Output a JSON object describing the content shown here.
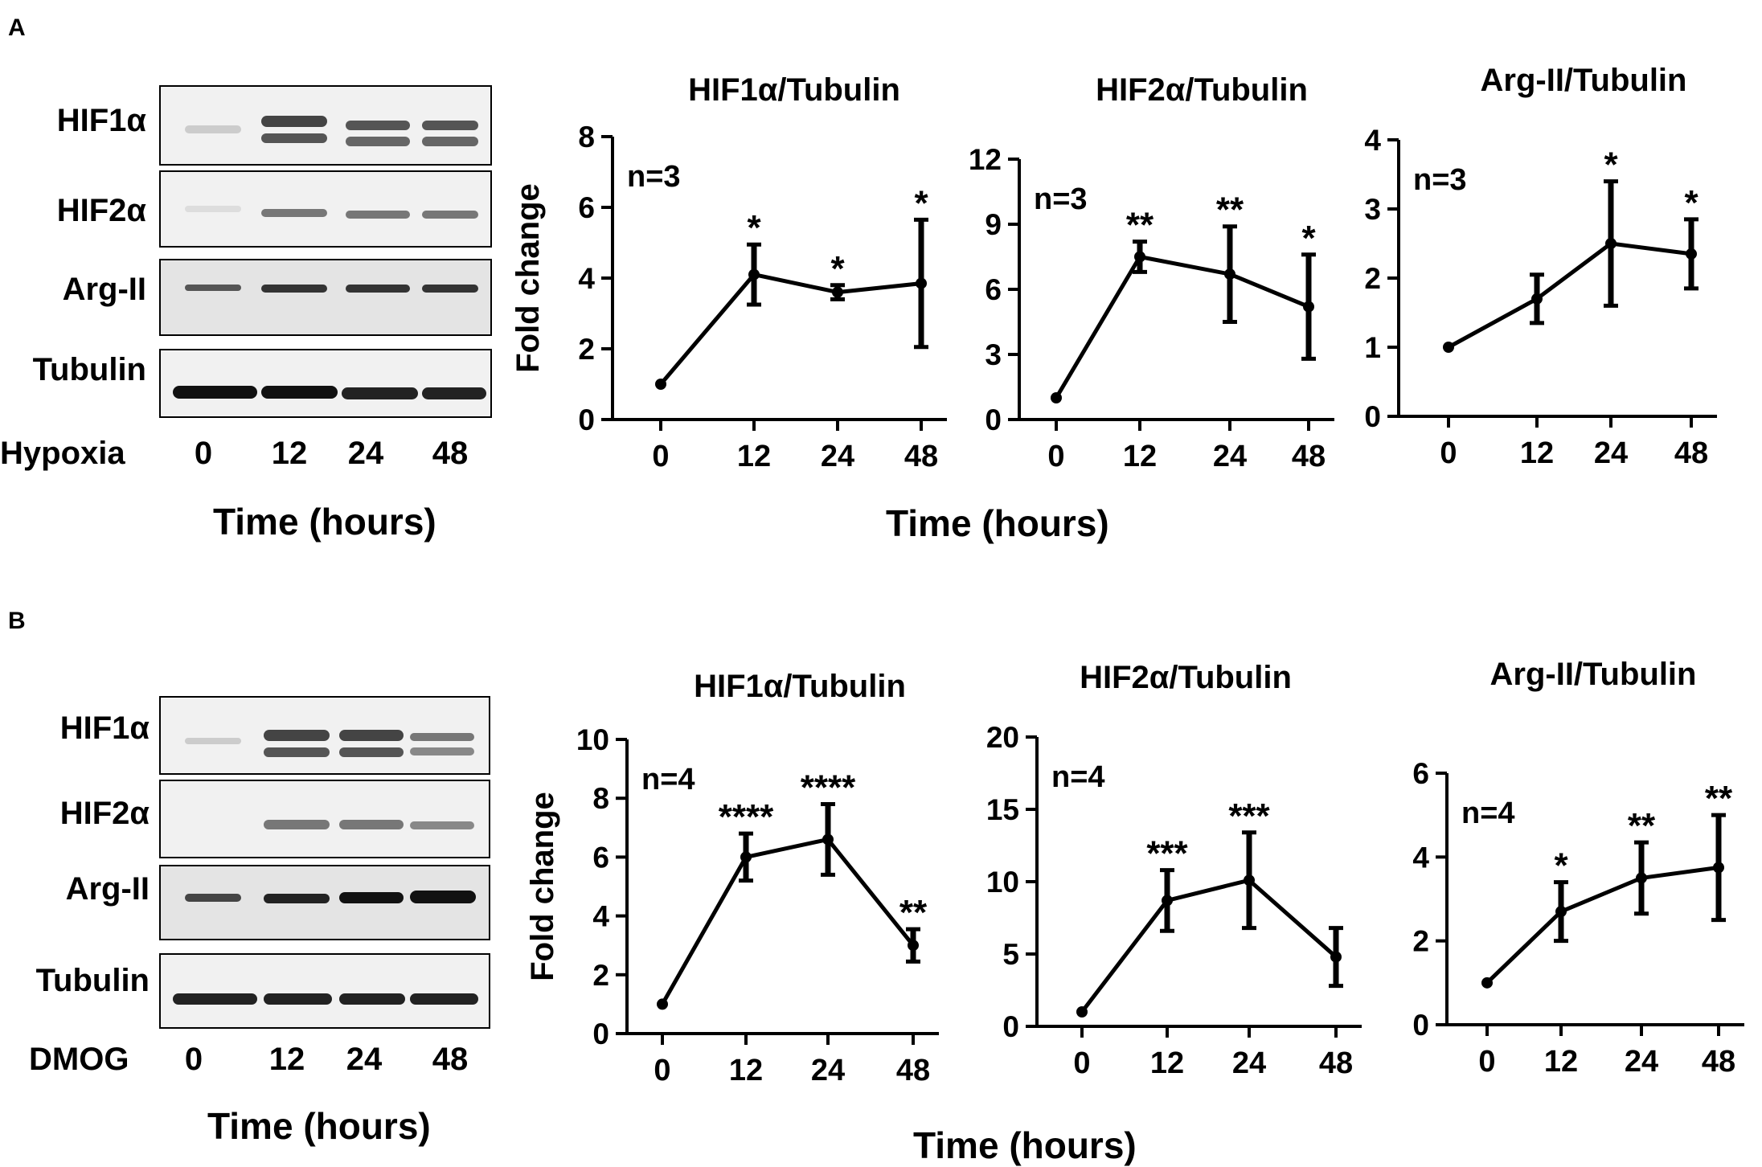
{
  "panels": [
    {
      "letter": "A",
      "blot": {
        "rows": [
          "HIF1α",
          "HIF2α",
          "Arg-II",
          "Tubulin"
        ],
        "condition": "Hypoxia",
        "lanes": [
          "0",
          "12",
          "24",
          "48"
        ],
        "xtitle": "Time (hours)"
      },
      "shared_xtitle": "Time (hours)"
    },
    {
      "letter": "B",
      "blot": {
        "rows": [
          "HIF1α",
          "HIF2α",
          "Arg-II",
          "Tubulin"
        ],
        "condition": "DMOG",
        "lanes": [
          "0",
          "12",
          "24",
          "48"
        ],
        "xtitle": "Time (hours)"
      },
      "shared_xtitle": "Time (hours)"
    }
  ],
  "chart_data": [
    {
      "type": "line",
      "title": "HIF1α/Tubulin",
      "ylabel": "Fold change",
      "xlabel": "",
      "categories": [
        "0",
        "12",
        "24",
        "48"
      ],
      "values": [
        1,
        4.1,
        3.6,
        3.85
      ],
      "errors": [
        0,
        0.85,
        0.2,
        1.8
      ],
      "sig": [
        "",
        "*",
        "*",
        "*"
      ],
      "n_label": "n=3",
      "ylim": [
        0,
        8
      ],
      "yticks": [
        0,
        2,
        4,
        6,
        8
      ]
    },
    {
      "type": "line",
      "title": "HIF2α/Tubulin",
      "ylabel": "",
      "xlabel": "",
      "categories": [
        "0",
        "12",
        "24",
        "48"
      ],
      "values": [
        1,
        7.5,
        6.7,
        5.2
      ],
      "errors": [
        0,
        0.7,
        2.2,
        2.4
      ],
      "sig": [
        "",
        "**",
        "**",
        "*"
      ],
      "n_label": "n=3",
      "ylim": [
        0,
        12
      ],
      "yticks": [
        0,
        3,
        6,
        9,
        12
      ]
    },
    {
      "type": "line",
      "title": "Arg-II/Tubulin",
      "ylabel": "",
      "xlabel": "",
      "categories": [
        "0",
        "12",
        "24",
        "48"
      ],
      "values": [
        1,
        1.7,
        2.5,
        2.35
      ],
      "errors": [
        0,
        0.35,
        0.9,
        0.5
      ],
      "sig": [
        "",
        "",
        "*",
        "*"
      ],
      "n_label": "n=3",
      "ylim": [
        0,
        4
      ],
      "yticks": [
        0,
        1,
        2,
        3,
        4
      ]
    },
    {
      "type": "line",
      "title": "HIF1α/Tubulin",
      "ylabel": "Fold change",
      "xlabel": "",
      "categories": [
        "0",
        "12",
        "24",
        "48"
      ],
      "values": [
        1,
        6.0,
        6.6,
        3.0
      ],
      "errors": [
        0,
        0.8,
        1.2,
        0.55
      ],
      "sig": [
        "",
        "****",
        "****",
        "**"
      ],
      "n_label": "n=4",
      "ylim": [
        0,
        10
      ],
      "yticks": [
        0,
        2,
        4,
        6,
        8,
        10
      ]
    },
    {
      "type": "line",
      "title": "HIF2α/Tubulin",
      "ylabel": "",
      "xlabel": "",
      "categories": [
        "0",
        "12",
        "24",
        "48"
      ],
      "values": [
        1,
        8.7,
        10.1,
        4.8
      ],
      "errors": [
        0,
        2.1,
        3.3,
        2.0
      ],
      "sig": [
        "",
        "***",
        "***",
        ""
      ],
      "n_label": "n=4",
      "ylim": [
        0,
        20
      ],
      "yticks": [
        0,
        5,
        10,
        15,
        20
      ]
    },
    {
      "type": "line",
      "title": "Arg-II/Tubulin",
      "ylabel": "",
      "xlabel": "",
      "categories": [
        "0",
        "12",
        "24",
        "48"
      ],
      "values": [
        1,
        2.7,
        3.5,
        3.75
      ],
      "errors": [
        0,
        0.7,
        0.85,
        1.25
      ],
      "sig": [
        "",
        "*",
        "**",
        "**"
      ],
      "n_label": "n=4",
      "ylim": [
        0,
        6
      ],
      "yticks": [
        0,
        2,
        4,
        6
      ]
    }
  ]
}
